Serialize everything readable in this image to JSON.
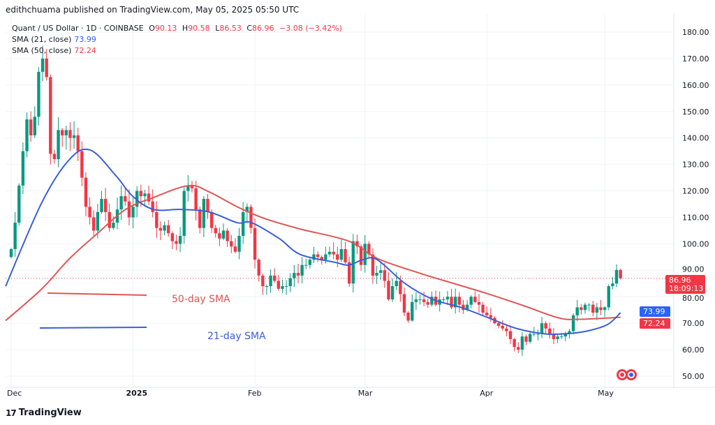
{
  "header": {
    "published": "edithchuama published on TradingView.com, May 05, 2025 05:50 UTC",
    "symbol": "Quant / US Dollar · 1D · COINBASE",
    "o_label": "O",
    "o": "90.13",
    "h_label": "H",
    "h": "90.58",
    "l_label": "L",
    "l": "86.53",
    "c_label": "C",
    "c": "86.96",
    "change": "−3.08 (−3.42%)",
    "sma21_label": "SMA (21, close)",
    "sma21_value": "73.99",
    "sma50_label": "SMA (50, close)",
    "sma50_value": "72.24"
  },
  "price_tag": {
    "price": "86.96",
    "countdown": "18:09:13"
  },
  "footer": {
    "brand": "TradingView"
  },
  "colors": {
    "up": "#089981",
    "down": "#f23645",
    "sma21": "#3a5ed6",
    "sma50": "#e05555",
    "grid": "#f0f3fa"
  },
  "chart_data": {
    "type": "candlestick",
    "title": "Quant / US Dollar · 1D · COINBASE",
    "x_start": "2024-12-01",
    "x_tick_labels": [
      {
        "day": 0,
        "label": "Dec"
      },
      {
        "day": 31,
        "label": "2025"
      },
      {
        "day": 62,
        "label": "Feb"
      },
      {
        "day": 90,
        "label": "Mar"
      },
      {
        "day": 121,
        "label": "Apr"
      },
      {
        "day": 151,
        "label": "May"
      }
    ],
    "y_ticks": [
      50,
      60,
      70,
      80,
      90,
      100,
      110,
      120,
      130,
      140,
      150,
      160,
      170,
      180
    ],
    "ylim": [
      50,
      180
    ],
    "first_open": 95,
    "closes": [
      98,
      108,
      122,
      135,
      147,
      141,
      148,
      165,
      170,
      163,
      134,
      132,
      143,
      141,
      143,
      140,
      141,
      135,
      125,
      114,
      110,
      105,
      112,
      117,
      112,
      106,
      108,
      113,
      118,
      116,
      110,
      114,
      120,
      118,
      119,
      116,
      112,
      106,
      105,
      107,
      104,
      101,
      100,
      103,
      120,
      122,
      121,
      113,
      106,
      117,
      112,
      106,
      104,
      102,
      105,
      101,
      99,
      97,
      103,
      112,
      114,
      106,
      94,
      88,
      84,
      84,
      88,
      86,
      83,
      84,
      84,
      87,
      89,
      88,
      92,
      92,
      94,
      96,
      95,
      94,
      96,
      97,
      96,
      94,
      98,
      93,
      85,
      101,
      99,
      92,
      100,
      96,
      88,
      89,
      90,
      86,
      79,
      84,
      86,
      81,
      74,
      71,
      78,
      79,
      79,
      78,
      77,
      80,
      77,
      79,
      79,
      80,
      76,
      80,
      77,
      75,
      77,
      80,
      78,
      77,
      74,
      73,
      72,
      70,
      69,
      68,
      67,
      64,
      61,
      60,
      65,
      63,
      66,
      66,
      66,
      70,
      68,
      66,
      64,
      65,
      65,
      66,
      67,
      73,
      76,
      75,
      77,
      77,
      74,
      76,
      75,
      76,
      84,
      85,
      90.13,
      86.96
    ],
    "last_candle": {
      "open": 90.13,
      "high": 90.58,
      "low": 86.53,
      "close": 86.96
    },
    "series": [
      {
        "name": "SMA (21, close)",
        "last": 73.99,
        "points": [
          [
            -1.4,
            84
          ],
          [
            7.8,
            115.6
          ],
          [
            14.9,
            132
          ],
          [
            20.2,
            135.4
          ],
          [
            26.5,
            126
          ],
          [
            30.9,
            118
          ],
          [
            36.2,
            113
          ],
          [
            43.3,
            113
          ],
          [
            50.4,
            112
          ],
          [
            57.5,
            108
          ],
          [
            61.1,
            108
          ],
          [
            68.2,
            102
          ],
          [
            73.5,
            96
          ],
          [
            82.4,
            93
          ],
          [
            85.9,
            92
          ],
          [
            89.5,
            94
          ],
          [
            93.1,
            94
          ],
          [
            100.2,
            85
          ],
          [
            107.3,
            79
          ],
          [
            114.4,
            76
          ],
          [
            121.5,
            72
          ],
          [
            128.6,
            68
          ],
          [
            135.7,
            66
          ],
          [
            141,
            66
          ],
          [
            146.4,
            67
          ],
          [
            151.7,
            69.5
          ],
          [
            155,
            73.99
          ]
        ]
      },
      {
        "name": "SMA (50, close)",
        "last": 72.24,
        "points": [
          [
            -1.4,
            71
          ],
          [
            7.8,
            83
          ],
          [
            14.9,
            94.5
          ],
          [
            22,
            104
          ],
          [
            29.1,
            113
          ],
          [
            36.2,
            117.5
          ],
          [
            45.1,
            122
          ],
          [
            50.4,
            119.6
          ],
          [
            57.5,
            114
          ],
          [
            64.6,
            109.5
          ],
          [
            73.5,
            105.6
          ],
          [
            85.9,
            101
          ],
          [
            93.1,
            94.5
          ],
          [
            103.7,
            89
          ],
          [
            112.6,
            85
          ],
          [
            121.5,
            81
          ],
          [
            130.4,
            76.6
          ],
          [
            139.3,
            72
          ],
          [
            144.6,
            71.5
          ],
          [
            155,
            72.24
          ]
        ]
      }
    ],
    "annotations": [
      {
        "text": "50-day SMA",
        "series": "SMA (50, close)"
      },
      {
        "text": "21-day SMA",
        "series": "SMA (21, close)"
      }
    ]
  }
}
